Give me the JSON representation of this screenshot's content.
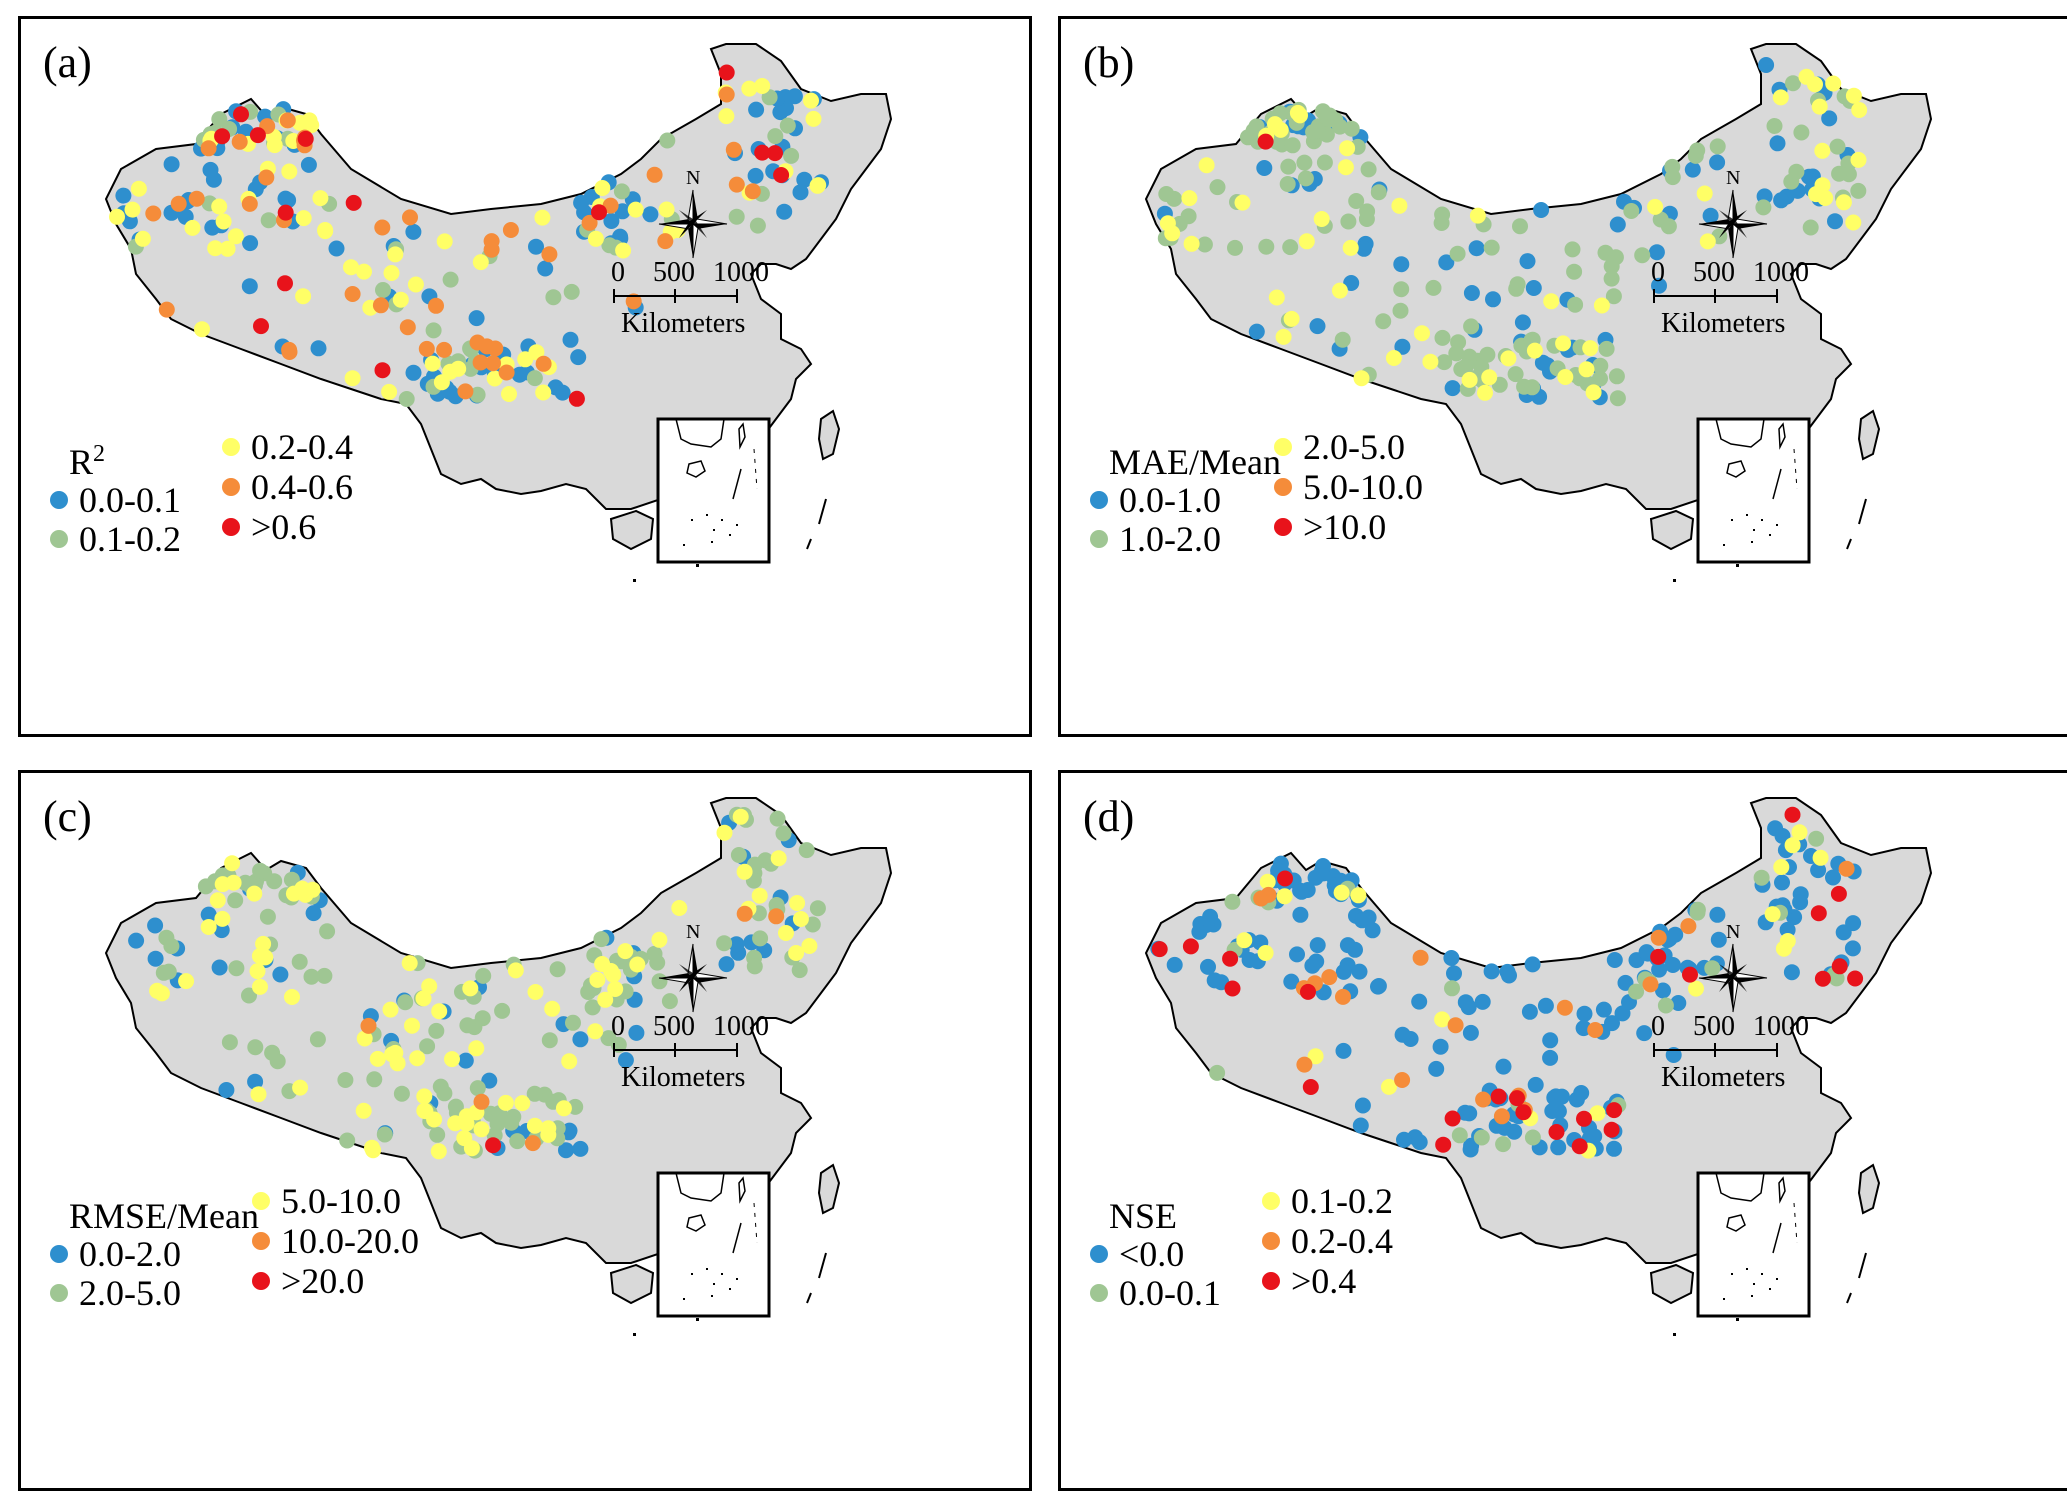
{
  "colors": {
    "land": "#d9d9d9",
    "border": "#000000",
    "c1": "#2e8fce",
    "c2": "#9fc693",
    "c3": "#ffff66",
    "c4": "#f58c3a",
    "c5": "#e8131b"
  },
  "scale_bar": {
    "ticks": [
      "0",
      "500",
      "1000"
    ],
    "unit": "Kilometers"
  },
  "north_arrow": {
    "label": "N",
    "icon": "compass-rose-icon"
  },
  "panels": [
    {
      "label": "(a)",
      "metric": "R",
      "metric_sup": "2",
      "classes": [
        "0.0-0.1",
        "0.1-0.2",
        "0.2-0.4",
        "0.4-0.6",
        ">0.6"
      ],
      "class_counts_estimate": [
        95,
        45,
        70,
        45,
        15
      ]
    },
    {
      "label": "(b)",
      "metric": "MAE/Mean",
      "metric_sup": "",
      "classes": [
        "0.0-1.0",
        "1.0-2.0",
        "2.0-5.0",
        "5.0-10.0",
        ">10.0"
      ],
      "class_counts_estimate": [
        75,
        135,
        55,
        0,
        1
      ]
    },
    {
      "label": "(c)",
      "metric": "RMSE/Mean",
      "metric_sup": "",
      "classes": [
        "0.0-2.0",
        "2.0-5.0",
        "5.0-10.0",
        "10.0-20.0",
        ">20.0"
      ],
      "class_counts_estimate": [
        50,
        130,
        85,
        5,
        1
      ]
    },
    {
      "label": "(d)",
      "metric": "NSE",
      "metric_sup": "",
      "classes": [
        "<0.0",
        "0.0-0.1",
        "0.1-0.2",
        "0.2-0.4",
        ">0.4"
      ],
      "class_counts_estimate": [
        180,
        25,
        20,
        20,
        25
      ]
    }
  ]
}
